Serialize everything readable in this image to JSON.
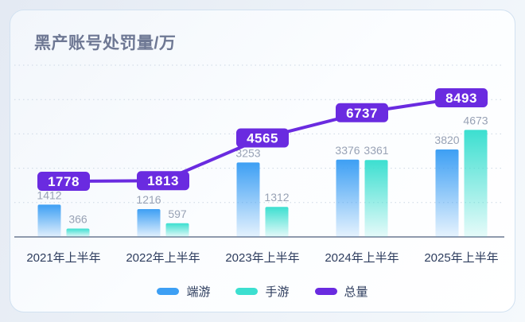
{
  "chart_data": {
    "type": "bar+line",
    "title": "黑产账号处罚量/万",
    "categories": [
      "2021年上半年",
      "2022年上半年",
      "2023年上半年",
      "2024年上半年",
      "2025年上半年"
    ],
    "series": [
      {
        "name": "端游",
        "type": "bar",
        "color": "#3d9ff4",
        "values": [
          1412,
          1216,
          3253,
          3376,
          3820
        ]
      },
      {
        "name": "手游",
        "type": "bar",
        "color": "#3cdfd0",
        "values": [
          366,
          597,
          1312,
          3361,
          4673
        ]
      },
      {
        "name": "总量",
        "type": "line",
        "color": "#6a2be0",
        "values": [
          1778,
          1813,
          4565,
          6737,
          8493
        ]
      }
    ],
    "ylabel": "",
    "unit": "万",
    "axis": {
      "ymax_bars": 7500,
      "gridline_count": 6,
      "grid_style": "dotted",
      "grid_color": "#ccd7e4",
      "axis_color": "#8f9aad"
    },
    "value_label_color": "#98a2b5",
    "axis_label_color": "#2e3d5e",
    "legend_position": "bottom"
  }
}
